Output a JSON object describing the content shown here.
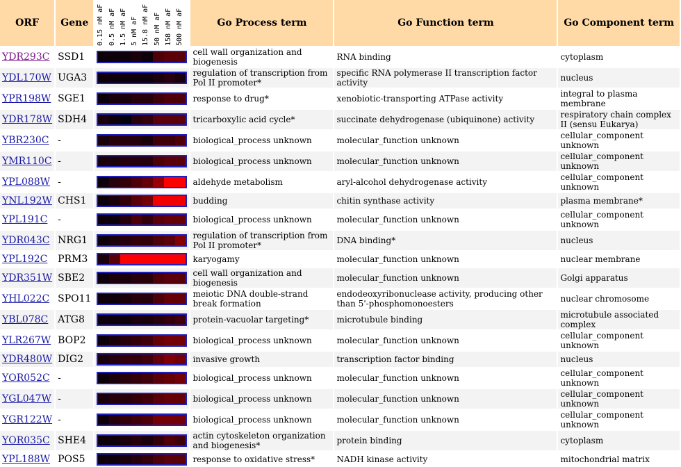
{
  "headers": {
    "orf": "ORF",
    "gene": "Gene",
    "process": "Go Process term",
    "function": "Go Function term",
    "component": "Go Component term",
    "conditions": [
      "0.15 nM aF",
      "0.5 nM aF",
      "1.5 nM aF",
      "5 nM aF",
      "15.8 nM aF",
      "50 nM aF",
      "158 nM aF",
      "500 nM aF"
    ]
  },
  "colors": {
    "header_bg": "#ffdaa6",
    "link": "#1a1aa8",
    "visited_link": "#7a1a8a",
    "heat_border": "#2020b8"
  },
  "rows": [
    {
      "orf": "YDR293C",
      "gene": "SSD1",
      "process": "cell wall organization and biogenesis",
      "function": "RNA binding",
      "component": "cytoplasm",
      "heat": [
        0.05,
        0.05,
        0.05,
        0.1,
        0.05,
        0.3,
        0.35,
        0.35
      ],
      "visited": true
    },
    {
      "orf": "YDL170W",
      "gene": "UGA3",
      "process": "regulation of transcription from Pol II promoter*",
      "function": "specific RNA polymerase II transcription factor activity",
      "component": "nucleus",
      "heat": [
        0.05,
        0.05,
        0.05,
        0.05,
        0.05,
        0.1,
        0.15,
        0.1
      ]
    },
    {
      "orf": "YPR198W",
      "gene": "SGE1",
      "process": "response to drug*",
      "function": "xenobiotic-transporting ATPase activity",
      "component": "integral to plasma membrane",
      "heat": [
        0.05,
        0.1,
        0.1,
        0.15,
        0.15,
        0.25,
        0.3,
        0.3
      ]
    },
    {
      "orf": "YDR178W",
      "gene": "SDH4",
      "process": "tricarboxylic acid cycle*",
      "function": "succinate dehydrogenase (ubiquinone) activity",
      "component": "respiratory chain complex II (sensu Eukarya)",
      "heat": [
        0.1,
        0.05,
        0.0,
        0.15,
        0.2,
        0.35,
        0.35,
        0.35
      ]
    },
    {
      "orf": "YBR230C",
      "gene": "-",
      "process": "biological_process unknown",
      "function": "molecular_function unknown",
      "component": "cellular_component unknown",
      "heat": [
        0.1,
        0.15,
        0.15,
        0.15,
        0.1,
        0.25,
        0.25,
        0.3
      ]
    },
    {
      "orf": "YMR110C",
      "gene": "-",
      "process": "biological_process unknown",
      "function": "molecular_function unknown",
      "component": "cellular_component unknown",
      "heat": [
        0.1,
        0.1,
        0.15,
        0.15,
        0.15,
        0.3,
        0.35,
        0.35
      ]
    },
    {
      "orf": "YPL088W",
      "gene": "-",
      "process": "aldehyde metabolism",
      "function": "aryl-alcohol dehydrogenase activity",
      "component": "cellular_component unknown",
      "heat": [
        0.05,
        0.15,
        0.2,
        0.3,
        0.4,
        0.6,
        1.0,
        1.0
      ]
    },
    {
      "orf": "YNL192W",
      "gene": "CHS1",
      "process": "budding",
      "function": "chitin synthase activity",
      "component": "plasma membrane*",
      "heat": [
        0.05,
        0.1,
        0.2,
        0.35,
        0.45,
        0.95,
        0.95,
        0.95
      ]
    },
    {
      "orf": "YPL191C",
      "gene": "-",
      "process": "biological_process unknown",
      "function": "molecular_function unknown",
      "component": "cellular_component unknown",
      "heat": [
        0.05,
        0.05,
        0.15,
        0.3,
        0.2,
        0.35,
        0.4,
        0.4
      ]
    },
    {
      "orf": "YDR043C",
      "gene": "NRG1",
      "process": "regulation of transcription from Pol II promoter*",
      "function": "DNA binding*",
      "component": "nucleus",
      "heat": [
        0.05,
        0.1,
        0.15,
        0.2,
        0.2,
        0.3,
        0.35,
        0.5
      ]
    },
    {
      "orf": "YPL192C",
      "gene": "PRM3",
      "process": "karyogamy",
      "function": "molecular_function unknown",
      "component": "nuclear membrane",
      "heat": [
        0.1,
        0.35,
        1.0,
        1.0,
        1.0,
        1.0,
        1.0,
        1.0
      ]
    },
    {
      "orf": "YDR351W",
      "gene": "SBE2",
      "process": "cell wall organization and biogenesis",
      "function": "molecular_function unknown",
      "component": "Golgi apparatus",
      "heat": [
        0.05,
        0.1,
        0.1,
        0.15,
        0.15,
        0.3,
        0.35,
        0.35
      ]
    },
    {
      "orf": "YHL022C",
      "gene": "SPO11",
      "process": "meiotic DNA double-strand break formation",
      "function": "endodeoxyribonuclease activity, producing other than 5'-phosphomonoesters",
      "component": "nuclear chromosome",
      "heat": [
        0.05,
        0.05,
        0.1,
        0.15,
        0.15,
        0.3,
        0.4,
        0.4
      ]
    },
    {
      "orf": "YBL078C",
      "gene": "ATG8",
      "process": "protein-vacuolar targeting*",
      "function": "microtubule binding",
      "component": "microtubule associated complex",
      "heat": [
        0.05,
        0.05,
        0.05,
        0.1,
        0.1,
        0.15,
        0.2,
        0.25
      ]
    },
    {
      "orf": "YLR267W",
      "gene": "BOP2",
      "process": "biological_process unknown",
      "function": "molecular_function unknown",
      "component": "cellular_component unknown",
      "heat": [
        0.05,
        0.1,
        0.15,
        0.2,
        0.25,
        0.4,
        0.45,
        0.45
      ]
    },
    {
      "orf": "YDR480W",
      "gene": "DIG2",
      "process": "invasive growth",
      "function": "transcription factor binding",
      "component": "nucleus",
      "heat": [
        0.1,
        0.15,
        0.2,
        0.2,
        0.25,
        0.4,
        0.5,
        0.45
      ]
    },
    {
      "orf": "YOR052C",
      "gene": "-",
      "process": "biological_process unknown",
      "function": "molecular_function unknown",
      "component": "cellular_component unknown",
      "heat": [
        0.05,
        0.1,
        0.15,
        0.2,
        0.25,
        0.35,
        0.4,
        0.45
      ]
    },
    {
      "orf": "YGL047W",
      "gene": "-",
      "process": "biological_process unknown",
      "function": "molecular_function unknown",
      "component": "cellular_component unknown",
      "heat": [
        0.1,
        0.15,
        0.15,
        0.2,
        0.25,
        0.35,
        0.4,
        0.4
      ]
    },
    {
      "orf": "YGR122W",
      "gene": "-",
      "process": "biological_process unknown",
      "function": "molecular_function unknown",
      "component": "cellular_component unknown",
      "heat": [
        0.05,
        0.15,
        0.2,
        0.25,
        0.3,
        0.45,
        0.45,
        0.45
      ]
    },
    {
      "orf": "YOR035C",
      "gene": "SHE4",
      "process": "actin cytoskeleton organization and biogenesis*",
      "function": "protein binding",
      "component": "cytoplasm",
      "heat": [
        0.05,
        0.05,
        0.1,
        0.15,
        0.1,
        0.2,
        0.3,
        0.25
      ]
    },
    {
      "orf": "YPL188W",
      "gene": "POS5",
      "process": "response to oxidative stress*",
      "function": "NADH kinase activity",
      "component": "mitochondrial matrix",
      "heat": [
        0.05,
        0.05,
        0.1,
        0.15,
        0.2,
        0.3,
        0.35,
        0.35
      ]
    }
  ]
}
